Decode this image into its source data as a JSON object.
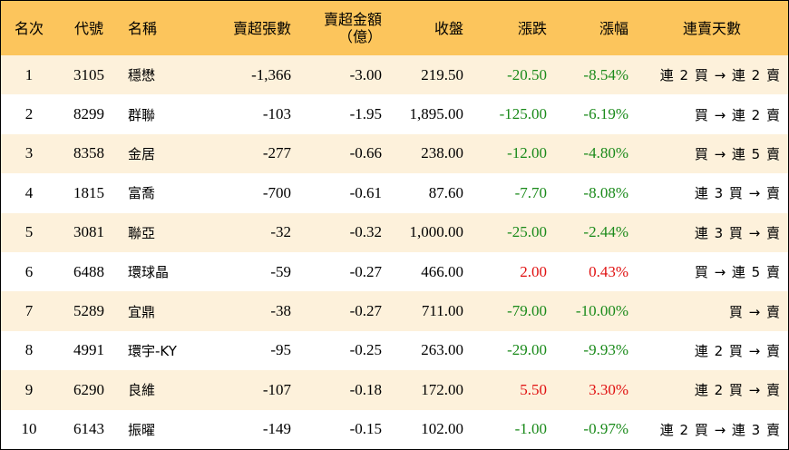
{
  "headers": {
    "rank": "名次",
    "code": "代號",
    "name": "名稱",
    "net_sell_lots": "賣超張數",
    "net_sell_amount_line1": "賣超金額",
    "net_sell_amount_line2": "（億）",
    "close": "收盤",
    "change": "漲跌",
    "change_pct": "漲幅",
    "streak": "連賣天數"
  },
  "rows": [
    {
      "rank": "1",
      "code": "3105",
      "name": "穩懋",
      "lots": "-1,366",
      "amount": "-3.00",
      "close": "219.50",
      "change": "-20.50",
      "pct": "-8.54%",
      "streak": "連 2 買 → 連 2 賣",
      "dir": "neg"
    },
    {
      "rank": "2",
      "code": "8299",
      "name": "群聯",
      "lots": "-103",
      "amount": "-1.95",
      "close": "1,895.00",
      "change": "-125.00",
      "pct": "-6.19%",
      "streak": "買 → 連 2 賣",
      "dir": "neg"
    },
    {
      "rank": "3",
      "code": "8358",
      "name": "金居",
      "lots": "-277",
      "amount": "-0.66",
      "close": "238.00",
      "change": "-12.00",
      "pct": "-4.80%",
      "streak": "買 → 連 5 賣",
      "dir": "neg"
    },
    {
      "rank": "4",
      "code": "1815",
      "name": "富喬",
      "lots": "-700",
      "amount": "-0.61",
      "close": "87.60",
      "change": "-7.70",
      "pct": "-8.08%",
      "streak": "連 3 買 → 賣",
      "dir": "neg"
    },
    {
      "rank": "5",
      "code": "3081",
      "name": "聯亞",
      "lots": "-32",
      "amount": "-0.32",
      "close": "1,000.00",
      "change": "-25.00",
      "pct": "-2.44%",
      "streak": "連 3 買 → 賣",
      "dir": "neg"
    },
    {
      "rank": "6",
      "code": "6488",
      "name": "環球晶",
      "lots": "-59",
      "amount": "-0.27",
      "close": "466.00",
      "change": "2.00",
      "pct": "0.43%",
      "streak": "買 → 連 5 賣",
      "dir": "pos"
    },
    {
      "rank": "7",
      "code": "5289",
      "name": "宜鼎",
      "lots": "-38",
      "amount": "-0.27",
      "close": "711.00",
      "change": "-79.00",
      "pct": "-10.00%",
      "streak": "買 → 賣",
      "dir": "neg"
    },
    {
      "rank": "8",
      "code": "4991",
      "name": "環宇-KY",
      "lots": "-95",
      "amount": "-0.25",
      "close": "263.00",
      "change": "-29.00",
      "pct": "-9.93%",
      "streak": "連 2 買 → 賣",
      "dir": "neg"
    },
    {
      "rank": "9",
      "code": "6290",
      "name": "良維",
      "lots": "-107",
      "amount": "-0.18",
      "close": "172.00",
      "change": "5.50",
      "pct": "3.30%",
      "streak": "連 2 買 → 賣",
      "dir": "pos"
    },
    {
      "rank": "10",
      "code": "6143",
      "name": "振曜",
      "lots": "-149",
      "amount": "-0.15",
      "close": "102.00",
      "change": "-1.00",
      "pct": "-0.97%",
      "streak": "連 2 買 → 連 3 賣",
      "dir": "neg"
    }
  ]
}
